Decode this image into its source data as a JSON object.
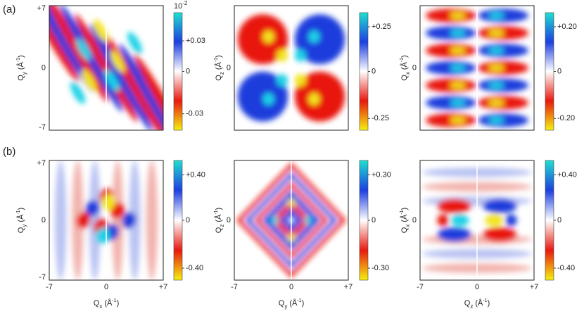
{
  "panel_labels": [
    "(a)",
    "(b)"
  ],
  "y_ticks": [
    "+7",
    "0",
    "-7"
  ],
  "x_ticks": [
    "-7",
    "0",
    "+7"
  ],
  "rows": [
    {
      "panels": [
        {
          "y_axis": {
            "symbol": "Q",
            "sub": "y",
            "unit": "(Å",
            "power": "-1",
            "close": ")"
          },
          "colorbar": {
            "exponent": {
              "base": "10",
              "power": "-2"
            },
            "ticks": [
              "+0.03",
              "0",
              "-0.03"
            ]
          }
        },
        {
          "y_axis": {
            "symbol": "Q",
            "sub": "z",
            "unit": "(Å",
            "power": "-1",
            "close": ")"
          },
          "colorbar": {
            "ticks": [
              "+0.25",
              "0",
              "-0.25"
            ]
          }
        },
        {
          "y_axis": {
            "symbol": "Q",
            "sub": "x",
            "unit": "(Å",
            "power": "-1",
            "close": ")"
          },
          "colorbar": {
            "ticks": [
              "+0.20",
              "0",
              "-0.20"
            ]
          }
        }
      ]
    },
    {
      "panels": [
        {
          "y_axis": {
            "symbol": "Q",
            "sub": "y",
            "unit": "(Å",
            "power": "-1",
            "close": ")"
          },
          "x_axis": {
            "symbol": "Q",
            "sub": "x",
            "unit": "(Å",
            "power": "-1",
            "close": ")"
          },
          "colorbar": {
            "ticks": [
              "+0.40",
              "0",
              "-0.40"
            ]
          }
        },
        {
          "y_axis": {
            "symbol": "Q",
            "sub": "z",
            "unit": "(Å",
            "power": "-1",
            "close": ")"
          },
          "x_axis": {
            "symbol": "Q",
            "sub": "y",
            "unit": "(Å",
            "power": "-1",
            "close": ")"
          },
          "colorbar": {
            "ticks": [
              "+0.30",
              "0",
              "-0.30"
            ]
          }
        },
        {
          "y_axis": {
            "symbol": "Q",
            "sub": "x",
            "unit": "(Å",
            "power": "-1",
            "close": ")"
          },
          "x_axis": {
            "symbol": "Q",
            "sub": "z",
            "unit": "(Å",
            "power": "-1",
            "close": ")"
          },
          "colorbar": {
            "ticks": [
              "+0.40",
              "0",
              "-0.40"
            ]
          }
        }
      ]
    }
  ]
}
